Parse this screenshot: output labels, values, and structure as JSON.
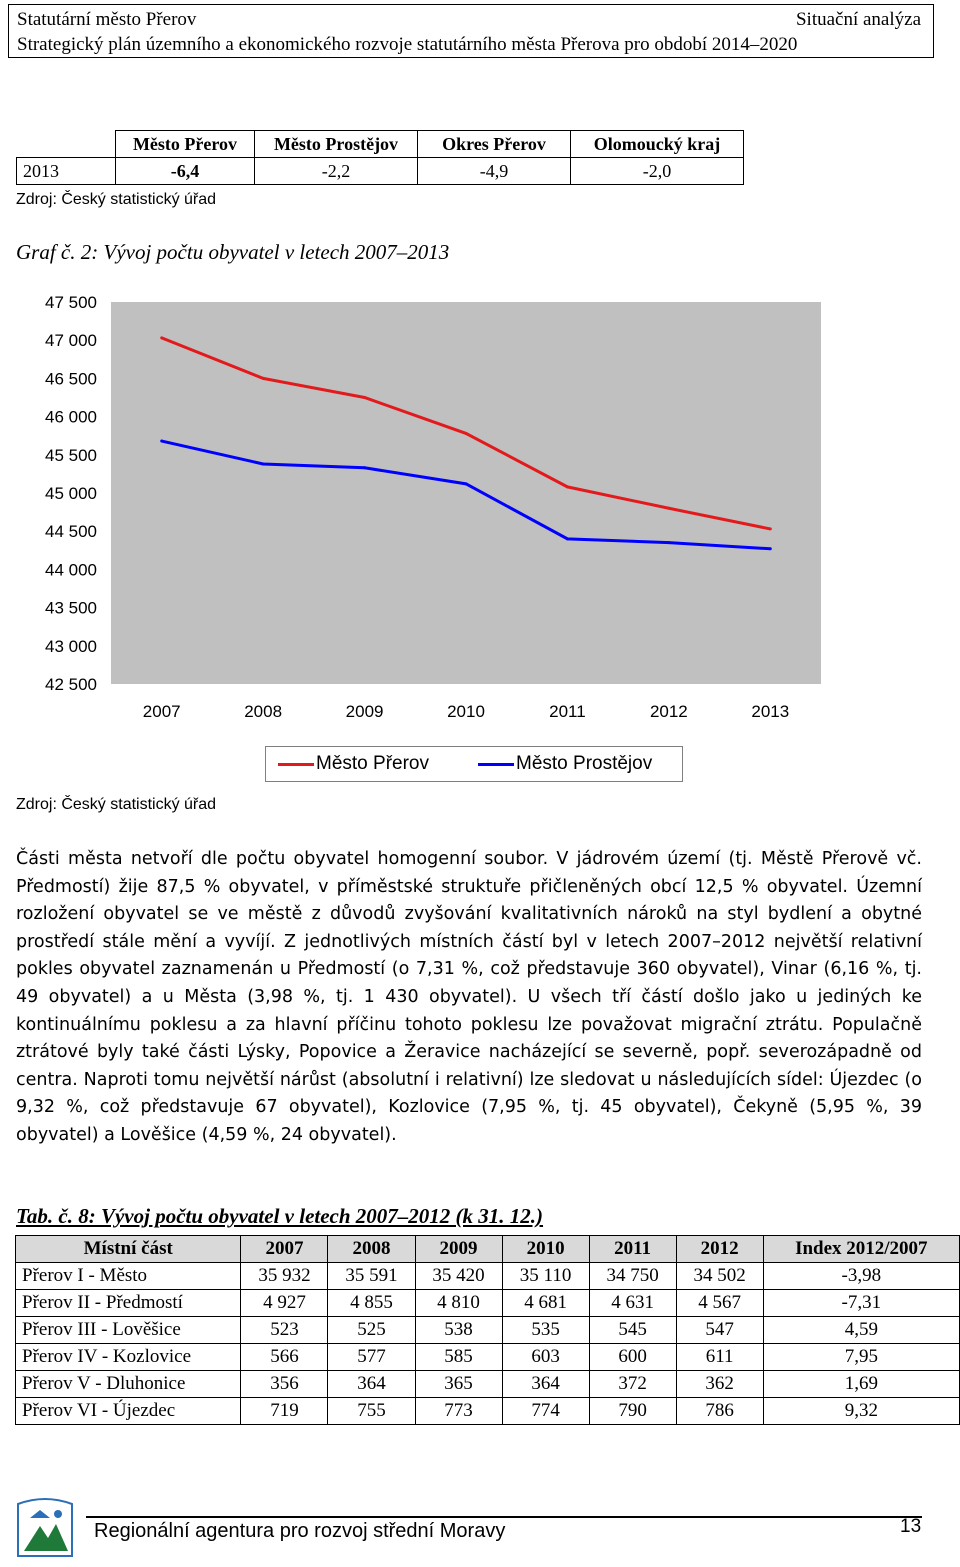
{
  "header": {
    "left1": "Statutární město Přerov",
    "right1": "Situační analýza",
    "line2": "Strategický plán územního a ekonomického rozvoje statutárního města Přerova pro období 2014–2020"
  },
  "small_table": {
    "headers": [
      "",
      "Město Přerov",
      "Město Prostějov",
      "Okres Přerov",
      "Olomoucký kraj"
    ],
    "row": [
      "2013",
      "-6,4",
      "-2,2",
      "-4,9",
      "-2,0"
    ]
  },
  "source1": "Zdroj: Český statistický úřad",
  "graph_title": "Graf č. 2: Vývoj počtu obyvatel v letech 2007–2013",
  "chart_data": {
    "type": "line",
    "x": [
      "2007",
      "2008",
      "2009",
      "2010",
      "2011",
      "2012",
      "2013"
    ],
    "ytick_labels": [
      "47 500",
      "47 000",
      "46 500",
      "46 000",
      "45 500",
      "45 000",
      "44 500",
      "44 000",
      "43 500",
      "43 000",
      "42 500"
    ],
    "ylim": [
      42500,
      47500
    ],
    "series": [
      {
        "name": "Město Přerov",
        "color": "#e31a1c",
        "values": [
          47030,
          46500,
          46250,
          45780,
          45080,
          44800,
          44530
        ]
      },
      {
        "name": "Město Prostějov",
        "color": "#0000ff",
        "values": [
          45680,
          45380,
          45330,
          45120,
          44400,
          44350,
          44270
        ]
      }
    ],
    "grid": false,
    "legend": "bottom"
  },
  "source2": "Zdroj: Český statistický úřad",
  "paragraph": "Části města netvoří dle počtu obyvatel homogenní soubor. V jádrovém území (tj. Městě Přerově vč. Předmostí) žije 87,5 % obyvatel, v příměstské struktuře přičleněných obcí 12,5 % obyvatel. Územní rozložení obyvatel se ve městě z důvodů zvyšování kvalitativních nároků na styl bydlení a obytné prostředí stále mění a vyvíjí. Z jednotlivých místních částí byl v letech 2007–2012 největší relativní pokles obyvatel zaznamenán u Předmostí (o 7,31 %, což představuje 360 obyvatel), Vinar (6,16 %, tj. 49 obyvatel) a u Města (3,98 %, tj. 1 430 obyvatel). U všech tří částí došlo jako u jediných ke kontinuálnímu poklesu a za hlavní příčinu tohoto poklesu lze považovat migrační ztrátu. Populačně ztrátové byly také části Lýsky, Popovice a Žeravice nacházející se severně, popř. severozápadně od centra. Naproti tomu největší nárůst (absolutní i relativní) lze sledovat u následujících sídel: Újezdec (o 9,32 %, což představuje 67 obyvatel), Kozlovice (7,95 %, tj. 45 obyvatel), Čekyně (5,95 %, 39 obyvatel) a Lověšice (4,59 %, 24 obyvatel).",
  "table_title": "Tab. č. 8: Vývoj počtu obyvatel v letech 2007–2012 (k 31. 12.)",
  "big_table": {
    "headers": [
      "Místní část",
      "2007",
      "2008",
      "2009",
      "2010",
      "2011",
      "2012",
      "Index 2012/2007"
    ],
    "rows": [
      [
        "Přerov I - Město",
        "35 932",
        "35 591",
        "35 420",
        "35 110",
        "34 750",
        "34 502",
        "-3,98"
      ],
      [
        "Přerov II - Předmostí",
        "4 927",
        "4 855",
        "4 810",
        "4 681",
        "4 631",
        "4 567",
        "-7,31"
      ],
      [
        "Přerov III - Lověšice",
        "523",
        "525",
        "538",
        "535",
        "545",
        "547",
        "4,59"
      ],
      [
        "Přerov IV - Kozlovice",
        "566",
        "577",
        "585",
        "603",
        "600",
        "611",
        "7,95"
      ],
      [
        "Přerov V - Dluhonice",
        "356",
        "364",
        "365",
        "364",
        "372",
        "362",
        "1,69"
      ],
      [
        "Přerov VI - Újezdec",
        "719",
        "755",
        "773",
        "774",
        "790",
        "786",
        "9,32"
      ]
    ]
  },
  "footer": {
    "text": "Regionální agentura pro rozvoj střední Moravy",
    "page": "13",
    "logo_text": "AGENTURA PRO ROZVOJ STŘEDNÍ MORAVY"
  }
}
